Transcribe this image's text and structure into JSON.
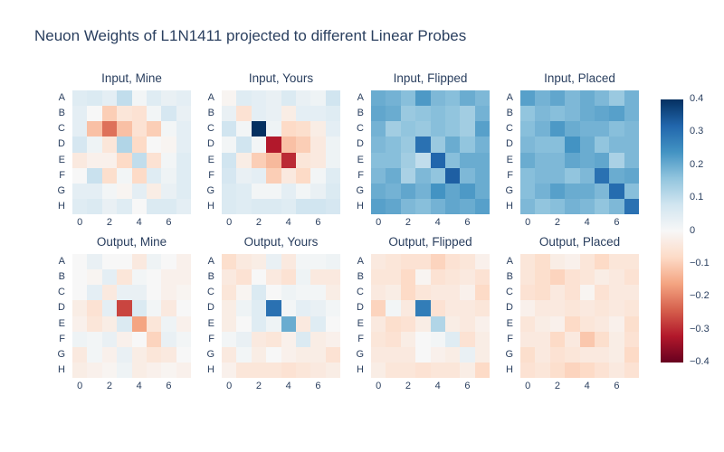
{
  "figure": {
    "title": "Neuon Weights of L1N1411 projected to different Linear Probes",
    "background_color": "#ffffff",
    "text_color": "#2a3f5f"
  },
  "chart_data": {
    "type": "heatmap",
    "title": "Neuon Weights of L1N1411 projected to different Linear Probes",
    "grid_layout": {
      "rows": 2,
      "cols": 4
    },
    "zmin": -0.4,
    "zmax": 0.4,
    "colorscale_name": "RdBu",
    "colorscale": [
      [
        0.0,
        "#67001f"
      ],
      [
        0.1,
        "#b2182b"
      ],
      [
        0.2,
        "#d6604d"
      ],
      [
        0.3,
        "#f4a582"
      ],
      [
        0.4,
        "#fddbc7"
      ],
      [
        0.5,
        "#f7f7f7"
      ],
      [
        0.6,
        "#d1e5f0"
      ],
      [
        0.7,
        "#92c5de"
      ],
      [
        0.8,
        "#4393c3"
      ],
      [
        0.9,
        "#2166ac"
      ],
      [
        1.0,
        "#053061"
      ]
    ],
    "y_labels": [
      "A",
      "B",
      "C",
      "D",
      "E",
      "F",
      "G",
      "H"
    ],
    "x_tick_labels": [
      "0",
      "2",
      "4",
      "6"
    ],
    "x_tick_cols": [
      0,
      2,
      4,
      6
    ],
    "colorbar": {
      "ticks": [
        "0.4",
        "0.3",
        "0.2",
        "0.1",
        "0",
        "−0.1",
        "−0.2",
        "−0.3",
        "−0.4"
      ],
      "orientation": "vertical",
      "position": "right"
    },
    "subplots": [
      {
        "title": "Input, Mine",
        "z": [
          [
            0.05,
            0.06,
            0.04,
            0.1,
            0.01,
            0.05,
            0.03,
            0.04
          ],
          [
            0.04,
            0.0,
            -0.1,
            -0.05,
            -0.06,
            0.01,
            0.07,
            0.03
          ],
          [
            0.04,
            -0.12,
            -0.22,
            -0.12,
            -0.06,
            -0.1,
            0.01,
            0.04
          ],
          [
            0.07,
            0.02,
            -0.05,
            0.12,
            -0.08,
            0.0,
            -0.01,
            0.04
          ],
          [
            -0.04,
            -0.02,
            -0.02,
            -0.08,
            0.1,
            -0.06,
            0.01,
            0.05
          ],
          [
            0.0,
            0.09,
            -0.07,
            0.01,
            -0.08,
            0.05,
            0.02,
            0.05
          ],
          [
            0.04,
            0.04,
            0.01,
            -0.01,
            0.04,
            -0.03,
            0.03,
            0.05
          ],
          [
            0.05,
            0.06,
            0.03,
            0.05,
            0.0,
            0.06,
            0.06,
            0.04
          ]
        ]
      },
      {
        "title": "Input, Yours",
        "z": [
          [
            -0.01,
            0.05,
            0.04,
            0.03,
            0.06,
            0.03,
            0.02,
            0.08
          ],
          [
            0.03,
            -0.06,
            0.04,
            0.03,
            -0.03,
            0.04,
            0.04,
            0.05
          ],
          [
            0.08,
            0.01,
            0.4,
            0.02,
            -0.08,
            -0.07,
            -0.03,
            0.04
          ],
          [
            0.01,
            0.08,
            0.01,
            -0.32,
            -0.12,
            -0.1,
            -0.04,
            0.02
          ],
          [
            0.08,
            -0.03,
            -0.1,
            -0.13,
            -0.3,
            -0.05,
            -0.04,
            0.02
          ],
          [
            0.07,
            0.03,
            0.04,
            -0.1,
            -0.04,
            -0.08,
            0.01,
            0.05
          ],
          [
            0.06,
            0.05,
            0.01,
            0.01,
            0.04,
            0.01,
            0.03,
            0.06
          ],
          [
            0.06,
            0.05,
            0.06,
            0.06,
            0.05,
            0.08,
            0.08,
            0.07
          ]
        ]
      },
      {
        "title": "Input, Flipped",
        "z": [
          [
            0.2,
            0.19,
            0.17,
            0.23,
            0.18,
            0.17,
            0.2,
            0.18
          ],
          [
            0.21,
            0.2,
            0.15,
            0.16,
            0.17,
            0.16,
            0.14,
            0.19
          ],
          [
            0.19,
            0.14,
            0.16,
            0.15,
            0.17,
            0.16,
            0.14,
            0.22
          ],
          [
            0.18,
            0.17,
            0.15,
            0.3,
            0.15,
            0.2,
            0.16,
            0.19
          ],
          [
            0.17,
            0.17,
            0.14,
            0.1,
            0.32,
            0.17,
            0.2,
            0.2
          ],
          [
            0.18,
            0.2,
            0.13,
            0.18,
            0.16,
            0.33,
            0.18,
            0.2
          ],
          [
            0.2,
            0.19,
            0.21,
            0.19,
            0.24,
            0.21,
            0.23,
            0.2
          ],
          [
            0.22,
            0.21,
            0.18,
            0.17,
            0.19,
            0.21,
            0.2,
            0.22
          ]
        ]
      },
      {
        "title": "Input, Placed",
        "z": [
          [
            0.22,
            0.19,
            0.21,
            0.18,
            0.2,
            0.18,
            0.15,
            0.19
          ],
          [
            0.16,
            0.18,
            0.17,
            0.18,
            0.2,
            0.21,
            0.22,
            0.19
          ],
          [
            0.17,
            0.19,
            0.23,
            0.2,
            0.19,
            0.19,
            0.17,
            0.18
          ],
          [
            0.18,
            0.17,
            0.17,
            0.24,
            0.2,
            0.16,
            0.18,
            0.18
          ],
          [
            0.2,
            0.18,
            0.18,
            0.21,
            0.2,
            0.21,
            0.13,
            0.18
          ],
          [
            0.17,
            0.18,
            0.18,
            0.16,
            0.18,
            0.3,
            0.2,
            0.21
          ],
          [
            0.17,
            0.19,
            0.22,
            0.2,
            0.2,
            0.18,
            0.31,
            0.17
          ],
          [
            0.18,
            0.16,
            0.17,
            0.19,
            0.18,
            0.16,
            0.18,
            0.3
          ]
        ]
      },
      {
        "title": "Output, Mine",
        "z": [
          [
            0.0,
            0.03,
            0.0,
            0.0,
            -0.04,
            0.02,
            0.0,
            -0.02
          ],
          [
            0.0,
            -0.01,
            0.04,
            -0.05,
            0.01,
            0.0,
            -0.02,
            -0.02
          ],
          [
            0.0,
            0.04,
            -0.04,
            0.03,
            0.03,
            0.0,
            -0.02,
            -0.01
          ],
          [
            -0.03,
            -0.06,
            0.04,
            -0.27,
            0.06,
            0.01,
            -0.04,
            0.0
          ],
          [
            -0.02,
            -0.05,
            -0.03,
            0.06,
            -0.16,
            -0.05,
            0.02,
            -0.02
          ],
          [
            0.02,
            0.01,
            0.03,
            -0.02,
            0.0,
            -0.09,
            0.03,
            0.01
          ],
          [
            -0.04,
            0.01,
            -0.02,
            0.03,
            -0.03,
            -0.05,
            -0.04,
            0.0
          ],
          [
            -0.03,
            -0.02,
            -0.01,
            0.02,
            -0.03,
            -0.02,
            -0.01,
            -0.02
          ]
        ]
      },
      {
        "title": "Output, Yours",
        "z": [
          [
            -0.07,
            -0.04,
            -0.03,
            0.03,
            -0.04,
            0.01,
            0.01,
            0.02
          ],
          [
            -0.04,
            -0.06,
            0.0,
            -0.04,
            -0.06,
            0.02,
            -0.04,
            -0.04
          ],
          [
            -0.05,
            -0.01,
            0.06,
            0.0,
            0.02,
            0.01,
            0.01,
            -0.03
          ],
          [
            -0.03,
            0.02,
            0.05,
            0.3,
            0.01,
            0.04,
            0.03,
            0.01
          ],
          [
            -0.03,
            0.0,
            0.05,
            0.02,
            0.2,
            -0.04,
            0.05,
            0.0
          ],
          [
            0.01,
            0.03,
            -0.04,
            -0.05,
            -0.02,
            0.06,
            -0.03,
            -0.02
          ],
          [
            -0.04,
            0.01,
            -0.03,
            0.0,
            -0.02,
            -0.03,
            -0.03,
            -0.06
          ],
          [
            -0.02,
            -0.05,
            -0.05,
            -0.05,
            -0.06,
            -0.05,
            -0.04,
            -0.03
          ]
        ]
      },
      {
        "title": "Output, Flipped",
        "z": [
          [
            -0.04,
            -0.05,
            -0.06,
            -0.06,
            -0.09,
            -0.06,
            -0.05,
            -0.02
          ],
          [
            -0.05,
            -0.05,
            -0.08,
            -0.01,
            -0.06,
            -0.05,
            -0.04,
            -0.06
          ],
          [
            -0.04,
            -0.03,
            -0.08,
            -0.05,
            -0.04,
            -0.04,
            -0.02,
            -0.08
          ],
          [
            -0.09,
            0.01,
            -0.04,
            0.28,
            -0.06,
            -0.04,
            -0.04,
            -0.05
          ],
          [
            -0.04,
            -0.07,
            -0.06,
            -0.03,
            0.12,
            -0.03,
            -0.04,
            -0.02
          ],
          [
            -0.05,
            -0.06,
            -0.03,
            0.0,
            0.01,
            0.05,
            -0.06,
            -0.03
          ],
          [
            -0.04,
            -0.04,
            -0.04,
            0.0,
            -0.02,
            -0.03,
            0.03,
            -0.03
          ],
          [
            -0.03,
            -0.05,
            -0.05,
            -0.06,
            -0.05,
            -0.05,
            -0.03,
            -0.08
          ]
        ]
      },
      {
        "title": "Output, Placed",
        "z": [
          [
            -0.05,
            -0.07,
            -0.03,
            -0.02,
            -0.05,
            -0.08,
            -0.05,
            -0.05
          ],
          [
            -0.05,
            -0.07,
            -0.09,
            -0.06,
            -0.05,
            -0.03,
            -0.04,
            -0.06
          ],
          [
            -0.06,
            -0.07,
            -0.04,
            -0.06,
            -0.01,
            -0.06,
            -0.04,
            -0.04
          ],
          [
            -0.02,
            -0.04,
            -0.04,
            -0.05,
            -0.04,
            -0.05,
            -0.04,
            -0.05
          ],
          [
            -0.05,
            -0.03,
            -0.02,
            -0.08,
            -0.05,
            -0.04,
            -0.02,
            -0.07
          ],
          [
            -0.04,
            -0.04,
            -0.08,
            -0.04,
            -0.11,
            -0.07,
            -0.03,
            -0.06
          ],
          [
            -0.07,
            -0.04,
            -0.06,
            -0.05,
            -0.04,
            -0.04,
            -0.03,
            -0.08
          ],
          [
            -0.06,
            -0.05,
            -0.07,
            -0.09,
            -0.08,
            -0.06,
            -0.04,
            -0.06
          ]
        ]
      }
    ]
  }
}
